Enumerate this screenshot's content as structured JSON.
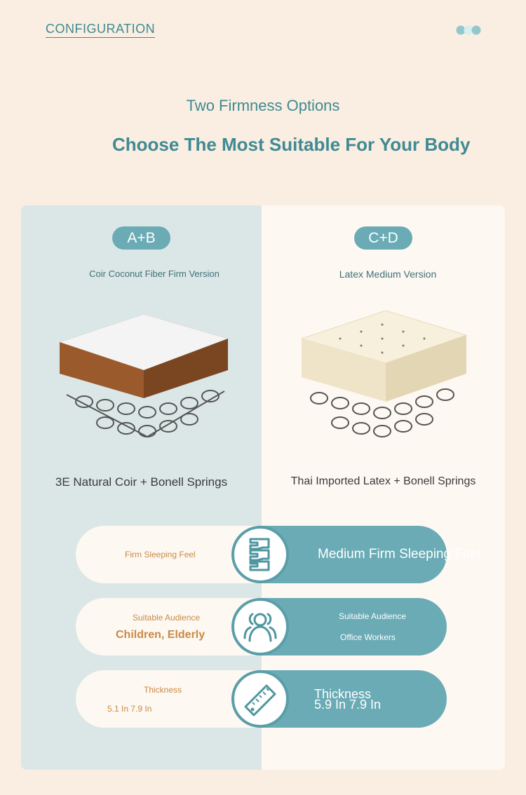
{
  "header": {
    "label": "CONFIGURATION",
    "dots_icon": "three-dots-icon"
  },
  "intro": {
    "subtitle": "Two Firmness Options",
    "title": "Choose The Most Suitable For Your Body"
  },
  "colors": {
    "teal": "#6aabb5",
    "orange": "#c98a45",
    "background": "#f9eee1",
    "left_panel": "#dbe7e6"
  },
  "options": [
    {
      "badge": "A+B",
      "version": "Coir Coconut Fiber Firm Version",
      "combo": "3E Natural Coir + Bonell Springs"
    },
    {
      "badge": "C+D",
      "version": "Latex Medium Version",
      "combo": "Thai Imported Latex + Bonell Springs"
    }
  ],
  "rows": [
    {
      "icon": "spine-icon",
      "left": "Firm Sleeping Feel",
      "right": "Medium Firm Sleeping Feel"
    },
    {
      "icon": "people-icon",
      "left_label": "Suitable Audience",
      "left_value": "Children, Elderly",
      "right_label": "Suitable Audience",
      "right_value": "Office Workers"
    },
    {
      "icon": "ruler-icon",
      "left_label": "Thickness",
      "left_value": "5.1 In 7.9 In",
      "right_label": "Thickness",
      "right_value": "5.9 In 7.9 In"
    }
  ]
}
